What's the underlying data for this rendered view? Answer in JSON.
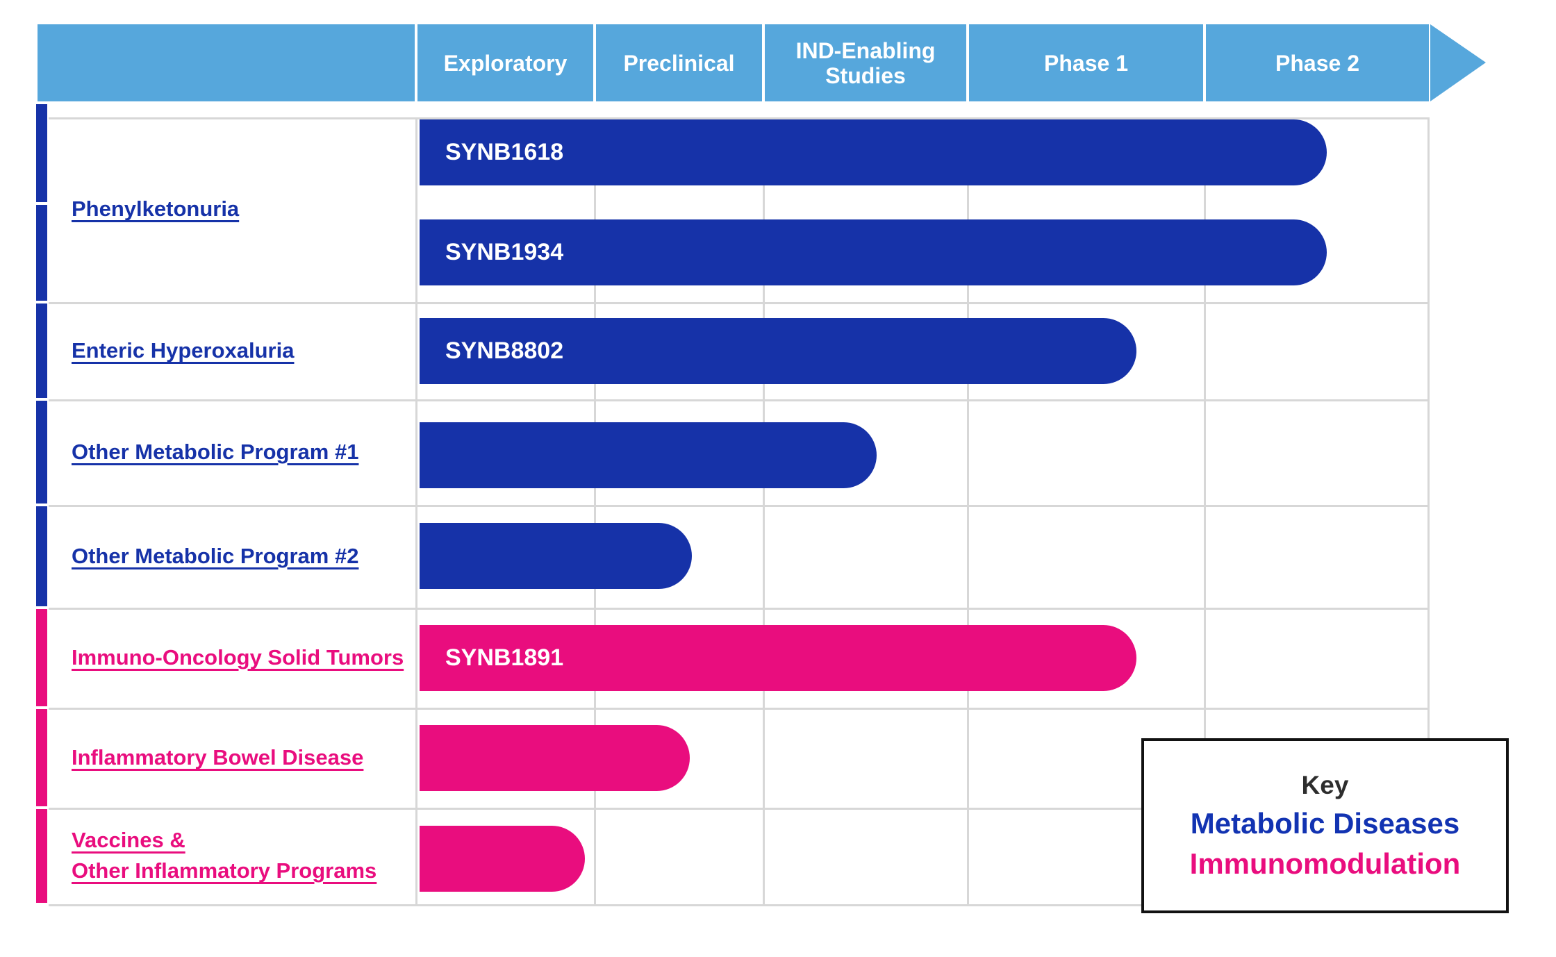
{
  "colors": {
    "header_blue": "#56A7DC",
    "metabolic_blue": "#1632A8",
    "immuno_pink": "#E90D7E",
    "key_blue": "#1233B2",
    "key_title": "#2D2D2D",
    "key_border": "#121212",
    "grid_gray": "#D7D7D7",
    "bar_text": "#FFFFFF"
  },
  "header": {
    "stages": [
      {
        "label": "Exploratory"
      },
      {
        "label": "Preclinical"
      },
      {
        "label": "IND-Enabling Studies"
      },
      {
        "label": "Phase 1"
      },
      {
        "label": "Phase 2"
      }
    ]
  },
  "rows": [
    {
      "label": "Phenylketonuria",
      "label2": "",
      "group": "metabolic"
    },
    {
      "label": "Enteric Hyperoxaluria",
      "label2": "",
      "group": "metabolic"
    },
    {
      "label": "Other Metabolic Program #1",
      "label2": "",
      "group": "metabolic"
    },
    {
      "label": "Other Metabolic Program #2",
      "label2": "",
      "group": "metabolic"
    },
    {
      "label": "Immuno-Oncology Solid Tumors",
      "label2": "",
      "group": "immuno"
    },
    {
      "label": "Inflammatory Bowel Disease",
      "label2": "",
      "group": "immuno"
    },
    {
      "label": "Vaccines &",
      "label2": "Other Inflammatory Programs",
      "group": "immuno"
    }
  ],
  "legend": {
    "title": "Key",
    "entries": [
      {
        "label": "Metabolic Diseases",
        "color": "#1233B2"
      },
      {
        "label": "Immunomodulation",
        "color": "#E90D7E"
      }
    ]
  },
  "chart_data": {
    "type": "bar",
    "subtype": "pipeline-gantt",
    "stages": [
      "Exploratory",
      "Preclinical",
      "IND-Enabling Studies",
      "Phase 1",
      "Phase 2"
    ],
    "categories": [
      "Phenylketonuria",
      "Phenylketonuria",
      "Enteric Hyperoxaluria",
      "Other Metabolic Program #1",
      "Other Metabolic Program #2",
      "Immuno-Oncology Solid Tumors",
      "Inflammatory Bowel Disease",
      "Vaccines & Other Inflammatory Programs"
    ],
    "bars": [
      {
        "label": "SYNB1618",
        "program": "Phenylketonuria",
        "group": "Metabolic Diseases",
        "end_stage": "Phase 2",
        "end_fraction": 0.545
      },
      {
        "label": "SYNB1934",
        "program": "Phenylketonuria",
        "group": "Metabolic Diseases",
        "end_stage": "Phase 2",
        "end_fraction": 0.545
      },
      {
        "label": "SYNB8802",
        "program": "Enteric Hyperoxaluria",
        "group": "Metabolic Diseases",
        "end_stage": "Phase 1",
        "end_fraction": 0.71
      },
      {
        "label": "",
        "program": "Other Metabolic Program #1",
        "group": "Metabolic Diseases",
        "end_stage": "IND-Enabling Studies",
        "end_fraction": 0.55
      },
      {
        "label": "",
        "program": "Other Metabolic Program #2",
        "group": "Metabolic Diseases",
        "end_stage": "Preclinical",
        "end_fraction": 0.57
      },
      {
        "label": "SYNB1891",
        "program": "Immuno-Oncology Solid Tumors",
        "group": "Immunomodulation",
        "end_stage": "Phase 1",
        "end_fraction": 0.71
      },
      {
        "label": "",
        "program": "Inflammatory Bowel Disease",
        "group": "Immunomodulation",
        "end_stage": "Preclinical",
        "end_fraction": 0.56
      },
      {
        "label": "",
        "program": "Vaccines & Other Inflammatory Programs",
        "group": "Immunomodulation",
        "end_stage": "Exploratory",
        "end_fraction": 0.94
      }
    ],
    "legend_position": "bottom-right",
    "grid": true
  }
}
